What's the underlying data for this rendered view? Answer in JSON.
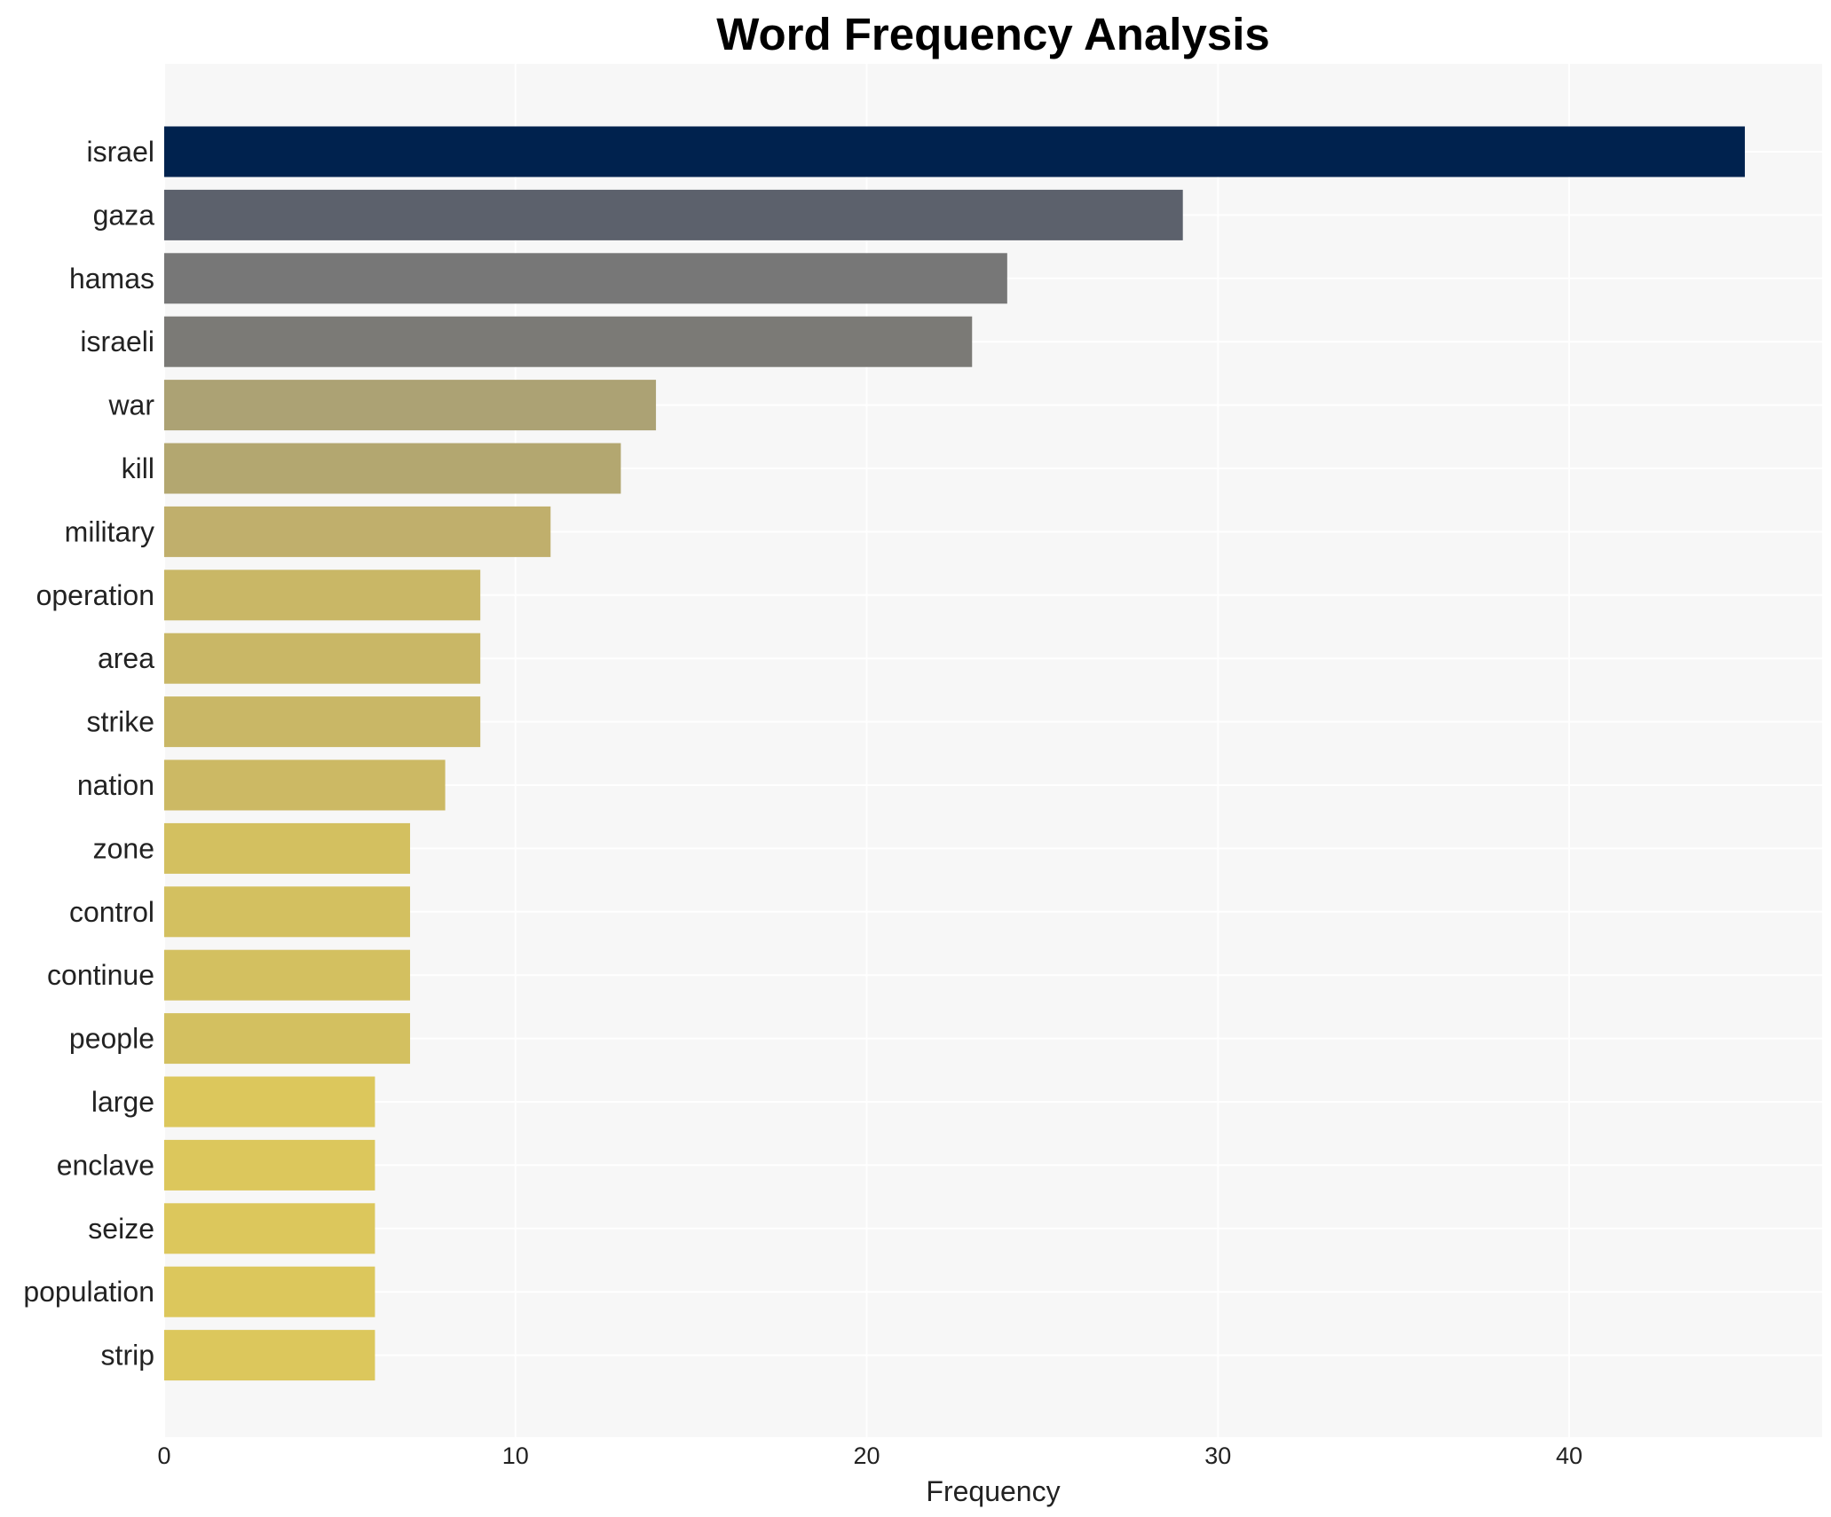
{
  "chart_data": {
    "type": "bar",
    "orientation": "horizontal",
    "title": "Word Frequency Analysis",
    "xlabel": "Frequency",
    "ylabel": "",
    "xlim": [
      0,
      47.2
    ],
    "xticks": [
      0,
      10,
      20,
      30,
      40
    ],
    "grid": true,
    "legend": "none",
    "categories": [
      "israel",
      "gaza",
      "hamas",
      "israeli",
      "war",
      "kill",
      "military",
      "operation",
      "area",
      "strike",
      "nation",
      "zone",
      "control",
      "continue",
      "people",
      "large",
      "enclave",
      "seize",
      "population",
      "strip"
    ],
    "values": [
      45,
      29,
      24,
      23,
      14,
      13,
      11,
      9,
      9,
      9,
      8,
      7,
      7,
      7,
      7,
      6,
      6,
      6,
      6,
      6
    ],
    "colors": [
      "#00224e",
      "#5c616c",
      "#777777",
      "#7b7a76",
      "#aca274",
      "#b3a770",
      "#c0af6c",
      "#c9b766",
      "#c9b766",
      "#c9b766",
      "#ccb964",
      "#d3c060",
      "#d3c060",
      "#d3c060",
      "#d3c060",
      "#dcc75c",
      "#dcc75c",
      "#dcc75c",
      "#dcc75c",
      "#dcc75c"
    ],
    "plot_background": "#f7f7f7",
    "grid_color": "#ffffff"
  }
}
